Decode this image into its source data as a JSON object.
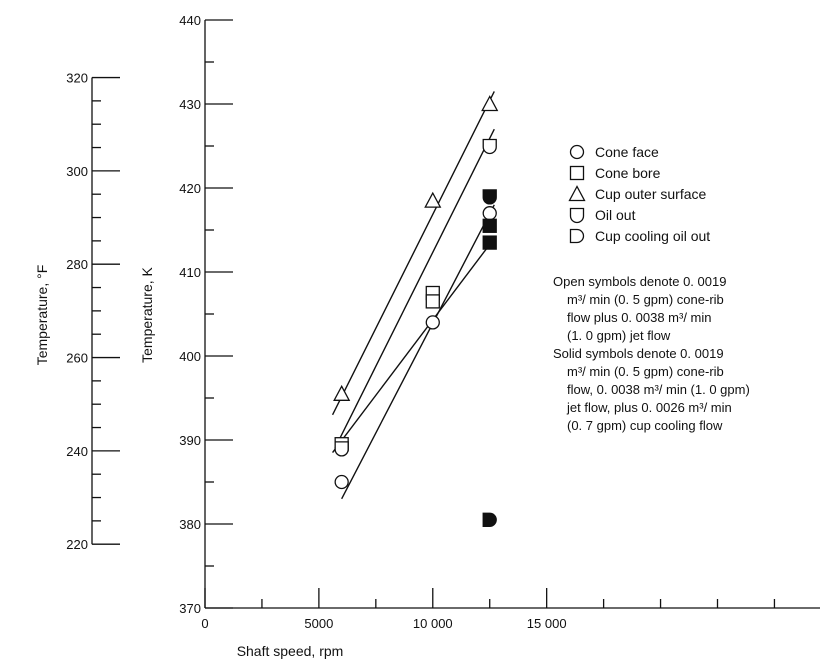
{
  "chart_data": {
    "type": "scatter",
    "xlabel": "Shaft speed, rpm",
    "ylabel": "Temperature, K",
    "y2label": "Temperature, °F",
    "xlim": [
      0,
      27000
    ],
    "ylim": [
      370,
      440
    ],
    "y2lim_label_values": [
      220,
      320
    ],
    "x_ticks": [
      {
        "v": 0,
        "label": "0"
      },
      {
        "v": 5000,
        "label": "5000"
      },
      {
        "v": 10000,
        "label": "10 000"
      },
      {
        "v": 15000,
        "label": "15 000"
      }
    ],
    "x_minor_ticks": [
      2500,
      7500,
      12500,
      17500,
      20000,
      22500,
      25000
    ],
    "y_ticks": [
      370,
      380,
      390,
      400,
      410,
      420,
      430,
      440
    ],
    "y_minor_ticks": [
      375,
      385,
      395,
      405,
      415,
      425,
      435
    ],
    "y2_ticks": [
      220,
      240,
      260,
      280,
      300,
      320
    ],
    "y2_minor_ticks": [
      225,
      230,
      235,
      245,
      250,
      255,
      265,
      270,
      275,
      285,
      290,
      295,
      305,
      310,
      315
    ],
    "series": [
      {
        "name": "Cone face",
        "symbol": "circle",
        "fill": "open",
        "points": [
          {
            "x": 6000,
            "y": 385
          },
          {
            "x": 10000,
            "y": 404
          },
          {
            "x": 12500,
            "y": 417
          }
        ],
        "fit": [
          [
            6000,
            383
          ],
          [
            12700,
            418
          ]
        ]
      },
      {
        "name": "Cone bore",
        "symbol": "square",
        "fill": "open",
        "points": [
          {
            "x": 6000,
            "y": 389.5
          },
          {
            "x": 10000,
            "y": 407.5
          },
          {
            "x": 10000,
            "y": 406.5
          }
        ],
        "fit": [
          [
            5600,
            388.5
          ],
          [
            12700,
            414
          ]
        ]
      },
      {
        "name": "Cup outer surface",
        "symbol": "triangle",
        "fill": "open",
        "points": [
          {
            "x": 6000,
            "y": 395.5
          },
          {
            "x": 10000,
            "y": 418.5
          },
          {
            "x": 12500,
            "y": 430
          }
        ],
        "fit": [
          [
            5600,
            393
          ],
          [
            12700,
            431.5
          ]
        ]
      },
      {
        "name": "Oil out",
        "symbol": "cup",
        "fill": "open",
        "points": [
          {
            "x": 6000,
            "y": 389
          },
          {
            "x": 12500,
            "y": 425
          }
        ],
        "fit": [
          [
            5700,
            389
          ],
          [
            12700,
            427
          ]
        ]
      },
      {
        "name": "Cup cooling oil out",
        "symbol": "d",
        "fill": "solid",
        "points": [
          {
            "x": 12500,
            "y": 380.5
          }
        ]
      },
      {
        "name": "Solid symbols",
        "symbol": "mixed",
        "fill": "solid",
        "points": [
          {
            "x": 12500,
            "y": 419,
            "symbol": "cup"
          },
          {
            "x": 12500,
            "y": 415.5,
            "symbol": "square"
          },
          {
            "x": 12500,
            "y": 413.5,
            "symbol": "square"
          }
        ]
      }
    ],
    "legend": [
      {
        "symbol": "circle",
        "label": "Cone face"
      },
      {
        "symbol": "square",
        "label": "Cone bore"
      },
      {
        "symbol": "triangle",
        "label": "Cup outer surface"
      },
      {
        "symbol": "cup",
        "label": "Oil out"
      },
      {
        "symbol": "d",
        "label": "Cup cooling oil out"
      }
    ],
    "notes": [
      "Open symbols denote 0. 0019",
      "m³/ min (0. 5 gpm) cone-rib",
      "flow plus 0. 0038 m³/ min",
      "(1. 0 gpm) jet flow",
      "Solid symbols denote 0. 0019",
      "m³/ min (0. 5 gpm) cone-rib",
      "flow, 0. 0038 m³/ min (1. 0 gpm)",
      "jet flow, plus 0. 0026 m³/ min",
      "(0. 7 gpm) cup cooling flow"
    ]
  }
}
